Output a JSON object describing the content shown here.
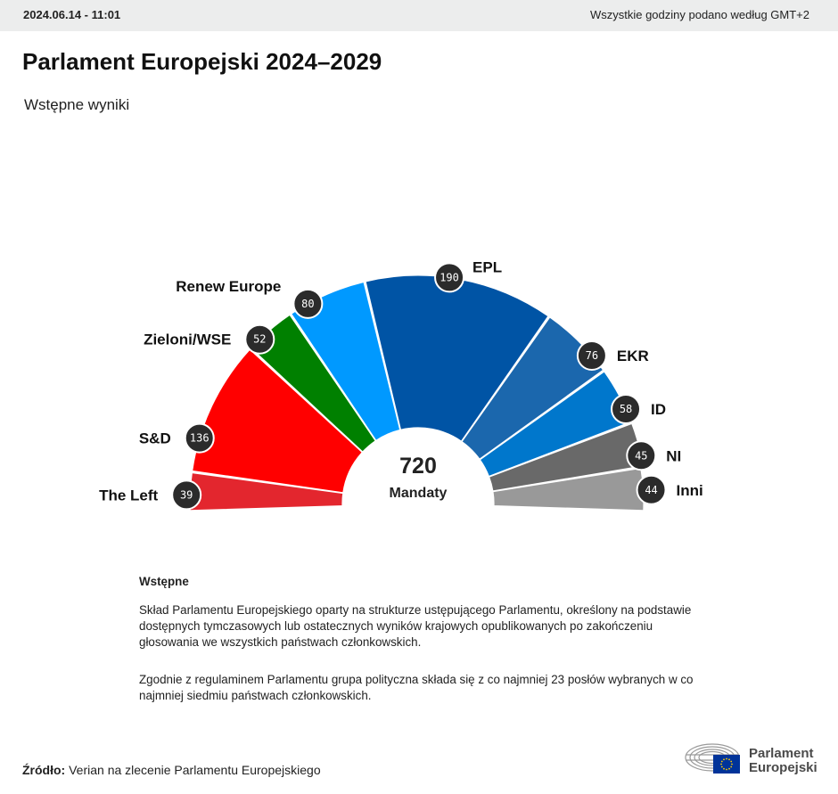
{
  "header": {
    "date": "2024.06.14 - 11:01",
    "timezone_note": "Wszystkie godziny podano według GMT+2"
  },
  "title": "Parlament Europejski 2024–2029",
  "subtitle": "Wstępne wyniki",
  "chart_data": {
    "type": "hemicycle",
    "total": {
      "value": "720",
      "label": "Mandaty"
    },
    "series": [
      {
        "name": "The Left",
        "value": 39,
        "color": "#e3262e"
      },
      {
        "name": "S&D",
        "value": 136,
        "color": "#ff0000"
      },
      {
        "name": "Zieloni/WSE",
        "value": 52,
        "color": "#008000"
      },
      {
        "name": "Renew Europe",
        "value": 80,
        "color": "#0099ff"
      },
      {
        "name": "EPL",
        "value": 190,
        "color": "#0054a5"
      },
      {
        "name": "EKR",
        "value": 76,
        "color": "#1b67ad"
      },
      {
        "name": "ID",
        "value": 58,
        "color": "#0077cc"
      },
      {
        "name": "NI",
        "value": 45,
        "color": "#696969"
      },
      {
        "name": "Inni",
        "value": 44,
        "color": "#999999"
      }
    ]
  },
  "notes": {
    "heading": "Wstępne",
    "paragraph1": "Skład Parlamentu Europejskiego oparty na strukturze ustępującego Parlamentu, określony na podstawie dostępnych tymczasowych lub ostatecznych wyników krajowych opublikowanych po zakończeniu głosowania we wszystkich państwach członkowskich.",
    "paragraph2": "Zgodnie z regulaminem Parlamentu grupa polityczna składa się z co najmniej 23 posłów wybranych w co najmniej siedmiu państwach członkowskich."
  },
  "source": {
    "label": "Źródło:",
    "text": "Verian na zlecenie Parlamentu Europejskiego"
  },
  "logo": {
    "line1": "Parlament",
    "line2": "Europejski",
    "flag_color": "#003399",
    "star_color": "#ffcc00"
  }
}
